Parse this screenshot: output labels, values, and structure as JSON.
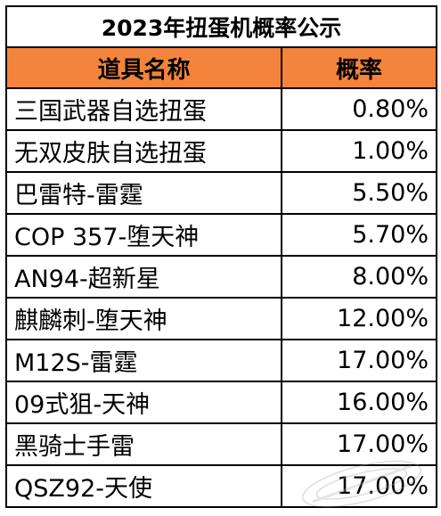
{
  "table": {
    "title": "2023年扭蛋机概率公示",
    "headers": {
      "item_name": "道具名称",
      "probability": "概率"
    },
    "rows": [
      {
        "name": "三国武器自选扭蛋",
        "probability": "0.80%"
      },
      {
        "name": "无双皮肤自选扭蛋",
        "probability": "1.00%"
      },
      {
        "name": "巴雷特-雷霆",
        "probability": "5.50%"
      },
      {
        "name": "COP 357-堕天神",
        "probability": "5.70%"
      },
      {
        "name": "AN94-超新星",
        "probability": "8.00%"
      },
      {
        "name": "麒麟刺-堕天神",
        "probability": "12.00%"
      },
      {
        "name": "M12S-雷霆",
        "probability": "17.00%"
      },
      {
        "name": "09式狙-天神",
        "probability": "16.00%"
      },
      {
        "name": "黑骑士手雷",
        "probability": "17.00%"
      },
      {
        "name": "QSZ92-天使",
        "probability": "17.00%"
      }
    ]
  },
  "colors": {
    "header_fill": "#f4843c",
    "border": "#000000"
  }
}
